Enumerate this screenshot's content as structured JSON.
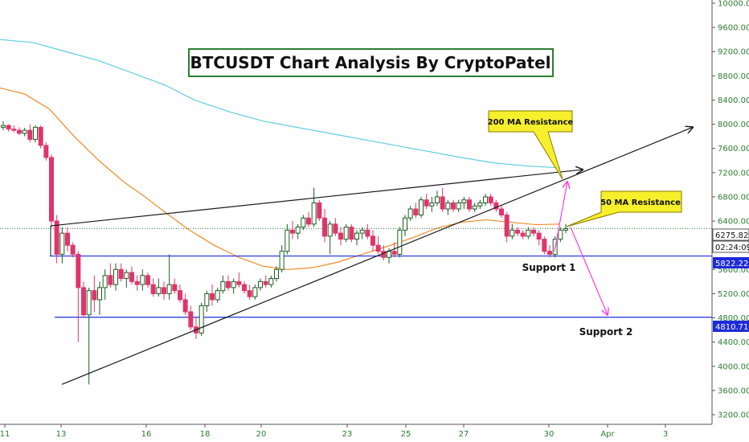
{
  "chart_data": {
    "type": "candlestick",
    "title": "BTCUSDT Chart Analysis By CryptoPatel",
    "y_axis": {
      "ticks": [
        "10000.00",
        "9600.00",
        "9200.00",
        "8800.00",
        "8400.00",
        "8000.00",
        "7600.00",
        "7200.00",
        "6800.00",
        "6400.00",
        "6000.00",
        "5600.00",
        "5200.00",
        "4800.00",
        "4400.00",
        "4000.00",
        "3600.00",
        "3200.00"
      ],
      "ylim": [
        3000,
        10000
      ]
    },
    "x_axis": {
      "ticks": [
        "11",
        "13",
        "16",
        "18",
        "20",
        "23",
        "25",
        "27",
        "30",
        "Apr",
        "3"
      ]
    },
    "candles": [
      {
        "o": 7950,
        "h": 8050,
        "l": 7900,
        "c": 7980
      },
      {
        "o": 7980,
        "h": 8000,
        "l": 7880,
        "c": 7920
      },
      {
        "o": 7920,
        "h": 7980,
        "l": 7870,
        "c": 7900
      },
      {
        "o": 7900,
        "h": 7950,
        "l": 7820,
        "c": 7850
      },
      {
        "o": 7850,
        "h": 7940,
        "l": 7800,
        "c": 7900
      },
      {
        "o": 7900,
        "h": 8000,
        "l": 7700,
        "c": 7750
      },
      {
        "o": 7750,
        "h": 7980,
        "l": 7700,
        "c": 7950
      },
      {
        "o": 7950,
        "h": 7980,
        "l": 7600,
        "c": 7650
      },
      {
        "o": 7650,
        "h": 7700,
        "l": 7400,
        "c": 7450
      },
      {
        "o": 7450,
        "h": 7500,
        "l": 6300,
        "c": 6400
      },
      {
        "o": 6400,
        "h": 6500,
        "l": 5700,
        "c": 5850
      },
      {
        "o": 5850,
        "h": 6300,
        "l": 5700,
        "c": 6200
      },
      {
        "o": 6200,
        "h": 6300,
        "l": 5900,
        "c": 6000
      },
      {
        "o": 6000,
        "h": 6050,
        "l": 5800,
        "c": 5850
      },
      {
        "o": 5850,
        "h": 5900,
        "l": 4400,
        "c": 5300
      },
      {
        "o": 5300,
        "h": 5400,
        "l": 4800,
        "c": 4850
      },
      {
        "o": 4850,
        "h": 5300,
        "l": 3700,
        "c": 5250
      },
      {
        "o": 5250,
        "h": 5500,
        "l": 4900,
        "c": 5100
      },
      {
        "o": 5100,
        "h": 5400,
        "l": 4850,
        "c": 5300
      },
      {
        "o": 5300,
        "h": 5600,
        "l": 5100,
        "c": 5500
      },
      {
        "o": 5500,
        "h": 5700,
        "l": 5300,
        "c": 5350
      },
      {
        "o": 5350,
        "h": 5700,
        "l": 5250,
        "c": 5600
      },
      {
        "o": 5600,
        "h": 5700,
        "l": 5400,
        "c": 5450
      },
      {
        "o": 5450,
        "h": 5600,
        "l": 5300,
        "c": 5550
      },
      {
        "o": 5550,
        "h": 5650,
        "l": 5350,
        "c": 5400
      },
      {
        "o": 5400,
        "h": 5500,
        "l": 5250,
        "c": 5350
      },
      {
        "o": 5350,
        "h": 5600,
        "l": 5250,
        "c": 5500
      },
      {
        "o": 5500,
        "h": 5550,
        "l": 5300,
        "c": 5350
      },
      {
        "o": 5350,
        "h": 5450,
        "l": 5150,
        "c": 5200
      },
      {
        "o": 5200,
        "h": 5450,
        "l": 5150,
        "c": 5300
      },
      {
        "o": 5300,
        "h": 5400,
        "l": 5100,
        "c": 5200
      },
      {
        "o": 5200,
        "h": 5850,
        "l": 5100,
        "c": 5350
      },
      {
        "o": 5350,
        "h": 5450,
        "l": 5200,
        "c": 5250
      },
      {
        "o": 5250,
        "h": 5350,
        "l": 5050,
        "c": 5100
      },
      {
        "o": 5100,
        "h": 5200,
        "l": 4850,
        "c": 4900
      },
      {
        "o": 4900,
        "h": 5000,
        "l": 4600,
        "c": 4650
      },
      {
        "o": 4650,
        "h": 4800,
        "l": 4450,
        "c": 4550
      },
      {
        "o": 4550,
        "h": 5050,
        "l": 4500,
        "c": 5000
      },
      {
        "o": 5000,
        "h": 5250,
        "l": 4900,
        "c": 5200
      },
      {
        "o": 5200,
        "h": 5350,
        "l": 5000,
        "c": 5100
      },
      {
        "o": 5100,
        "h": 5300,
        "l": 5050,
        "c": 5250
      },
      {
        "o": 5250,
        "h": 5500,
        "l": 5200,
        "c": 5400
      },
      {
        "o": 5400,
        "h": 5500,
        "l": 5250,
        "c": 5300
      },
      {
        "o": 5300,
        "h": 5450,
        "l": 5200,
        "c": 5400
      },
      {
        "o": 5400,
        "h": 5550,
        "l": 5300,
        "c": 5350
      },
      {
        "o": 5350,
        "h": 5400,
        "l": 5200,
        "c": 5250
      },
      {
        "o": 5250,
        "h": 5350,
        "l": 5100,
        "c": 5150
      },
      {
        "o": 5150,
        "h": 5350,
        "l": 5100,
        "c": 5300
      },
      {
        "o": 5300,
        "h": 5450,
        "l": 5250,
        "c": 5400
      },
      {
        "o": 5400,
        "h": 5500,
        "l": 5300,
        "c": 5350
      },
      {
        "o": 5350,
        "h": 5500,
        "l": 5300,
        "c": 5450
      },
      {
        "o": 5450,
        "h": 5650,
        "l": 5400,
        "c": 5600
      },
      {
        "o": 5600,
        "h": 6000,
        "l": 5550,
        "c": 5900
      },
      {
        "o": 5900,
        "h": 6350,
        "l": 5850,
        "c": 6250
      },
      {
        "o": 6250,
        "h": 6400,
        "l": 6100,
        "c": 6200
      },
      {
        "o": 6200,
        "h": 6350,
        "l": 6100,
        "c": 6300
      },
      {
        "o": 6300,
        "h": 6500,
        "l": 6250,
        "c": 6450
      },
      {
        "o": 6450,
        "h": 6550,
        "l": 6300,
        "c": 6350
      },
      {
        "o": 6350,
        "h": 6950,
        "l": 6300,
        "c": 6700
      },
      {
        "o": 6700,
        "h": 6750,
        "l": 6400,
        "c": 6450
      },
      {
        "o": 6450,
        "h": 6600,
        "l": 6050,
        "c": 6150
      },
      {
        "o": 6150,
        "h": 6400,
        "l": 5850,
        "c": 6350
      },
      {
        "o": 6350,
        "h": 6450,
        "l": 6150,
        "c": 6200
      },
      {
        "o": 6200,
        "h": 6300,
        "l": 6000,
        "c": 6100
      },
      {
        "o": 6100,
        "h": 6350,
        "l": 6050,
        "c": 6300
      },
      {
        "o": 6300,
        "h": 6350,
        "l": 6050,
        "c": 6100
      },
      {
        "o": 6100,
        "h": 6250,
        "l": 6000,
        "c": 6200
      },
      {
        "o": 6200,
        "h": 6300,
        "l": 6100,
        "c": 6250
      },
      {
        "o": 6250,
        "h": 6350,
        "l": 6100,
        "c": 6150
      },
      {
        "o": 6150,
        "h": 6250,
        "l": 5900,
        "c": 6000
      },
      {
        "o": 6000,
        "h": 6150,
        "l": 5850,
        "c": 5900
      },
      {
        "o": 5900,
        "h": 6000,
        "l": 5750,
        "c": 5800
      },
      {
        "o": 5800,
        "h": 5950,
        "l": 5700,
        "c": 5900
      },
      {
        "o": 5900,
        "h": 6050,
        "l": 5800,
        "c": 5850
      },
      {
        "o": 5850,
        "h": 6300,
        "l": 5800,
        "c": 6250
      },
      {
        "o": 6250,
        "h": 6500,
        "l": 6150,
        "c": 6450
      },
      {
        "o": 6450,
        "h": 6650,
        "l": 6400,
        "c": 6600
      },
      {
        "o": 6600,
        "h": 6700,
        "l": 6450,
        "c": 6500
      },
      {
        "o": 6500,
        "h": 6800,
        "l": 6450,
        "c": 6750
      },
      {
        "o": 6750,
        "h": 6850,
        "l": 6600,
        "c": 6650
      },
      {
        "o": 6650,
        "h": 6800,
        "l": 6550,
        "c": 6700
      },
      {
        "o": 6700,
        "h": 6900,
        "l": 6650,
        "c": 6800
      },
      {
        "o": 6800,
        "h": 6950,
        "l": 6550,
        "c": 6600
      },
      {
        "o": 6600,
        "h": 6750,
        "l": 6500,
        "c": 6700
      },
      {
        "o": 6700,
        "h": 6750,
        "l": 6550,
        "c": 6600
      },
      {
        "o": 6600,
        "h": 6750,
        "l": 6550,
        "c": 6700
      },
      {
        "o": 6700,
        "h": 6800,
        "l": 6600,
        "c": 6750
      },
      {
        "o": 6750,
        "h": 6800,
        "l": 6550,
        "c": 6600
      },
      {
        "o": 6600,
        "h": 6700,
        "l": 6550,
        "c": 6650
      },
      {
        "o": 6650,
        "h": 6750,
        "l": 6600,
        "c": 6700
      },
      {
        "o": 6700,
        "h": 6850,
        "l": 6650,
        "c": 6800
      },
      {
        "o": 6800,
        "h": 6850,
        "l": 6650,
        "c": 6700
      },
      {
        "o": 6700,
        "h": 6750,
        "l": 6550,
        "c": 6600
      },
      {
        "o": 6600,
        "h": 6650,
        "l": 6450,
        "c": 6500
      },
      {
        "o": 6500,
        "h": 6550,
        "l": 6050,
        "c": 6150
      },
      {
        "o": 6150,
        "h": 6350,
        "l": 6100,
        "c": 6250
      },
      {
        "o": 6250,
        "h": 6300,
        "l": 6150,
        "c": 6200
      },
      {
        "o": 6200,
        "h": 6250,
        "l": 6100,
        "c": 6150
      },
      {
        "o": 6150,
        "h": 6300,
        "l": 6100,
        "c": 6250
      },
      {
        "o": 6250,
        "h": 6300,
        "l": 6150,
        "c": 6200
      },
      {
        "o": 6200,
        "h": 6250,
        "l": 6000,
        "c": 6100
      },
      {
        "o": 6100,
        "h": 6150,
        "l": 5850,
        "c": 5900
      },
      {
        "o": 5900,
        "h": 6000,
        "l": 5800,
        "c": 5850
      },
      {
        "o": 5850,
        "h": 6150,
        "l": 5800,
        "c": 6100
      },
      {
        "o": 6100,
        "h": 6300,
        "l": 6050,
        "c": 6250
      },
      {
        "o": 6250,
        "h": 6350,
        "l": 6200,
        "c": 6276
      }
    ],
    "lines": {
      "ma200": [
        [
          0,
          9400
        ],
        [
          20,
          9350
        ],
        [
          40,
          9200
        ],
        [
          60,
          9050
        ],
        [
          80,
          8850
        ],
        [
          100,
          8650
        ],
        [
          118,
          8400
        ],
        [
          140,
          8200
        ],
        [
          160,
          8050
        ],
        [
          180,
          7950
        ],
        [
          200,
          7850
        ],
        [
          220,
          7750
        ],
        [
          240,
          7650
        ],
        [
          260,
          7550
        ],
        [
          280,
          7450
        ],
        [
          300,
          7360
        ],
        [
          320,
          7310
        ],
        [
          340,
          7280
        ]
      ],
      "ma50": [
        [
          0,
          8600
        ],
        [
          15,
          8500
        ],
        [
          30,
          8250
        ],
        [
          45,
          7800
        ],
        [
          60,
          7400
        ],
        [
          75,
          7050
        ],
        [
          88,
          6800
        ],
        [
          100,
          6550
        ],
        [
          115,
          6250
        ],
        [
          130,
          6000
        ],
        [
          145,
          5800
        ],
        [
          160,
          5650
        ],
        [
          175,
          5600
        ],
        [
          190,
          5630
        ],
        [
          205,
          5720
        ],
        [
          220,
          5850
        ],
        [
          235,
          5980
        ],
        [
          250,
          6120
        ],
        [
          265,
          6280
        ],
        [
          280,
          6380
        ],
        [
          295,
          6420
        ],
        [
          310,
          6380
        ],
        [
          325,
          6340
        ],
        [
          340,
          6350
        ]
      ],
      "wedge_upper": [
        [
          63,
          6320
        ],
        [
          725,
          7250
        ]
      ],
      "wedge_lower": [
        [
          77,
          3700
        ],
        [
          862,
          7950
        ]
      ],
      "support_1": 5822.22,
      "support_2": 4810.71
    },
    "legend": "none",
    "grid": false
  },
  "labels": {
    "title": "BTCUSDT Chart Analysis By CryptoPatel",
    "callout_200": "200 MA Resistance",
    "callout_50": "50 MA Resistance",
    "support_1": "Support 1",
    "support_2": "Support 2"
  },
  "price_tags": {
    "last_price": "6275.82",
    "countdown": "02:24:09",
    "support_1_price": "5822.22",
    "support_2_price": "4810.71"
  },
  "colors": {
    "ma200": "#5ecde0",
    "ma50": "#f08a24",
    "trendline": "#1a1a1a",
    "support": "#1e2bd9",
    "projection": "#ff3edc",
    "candle_up": "#1b5e20",
    "candle_down": "#e0356a",
    "axis_text": "#2e7d32",
    "callout_fill": "#f6ef2b"
  }
}
